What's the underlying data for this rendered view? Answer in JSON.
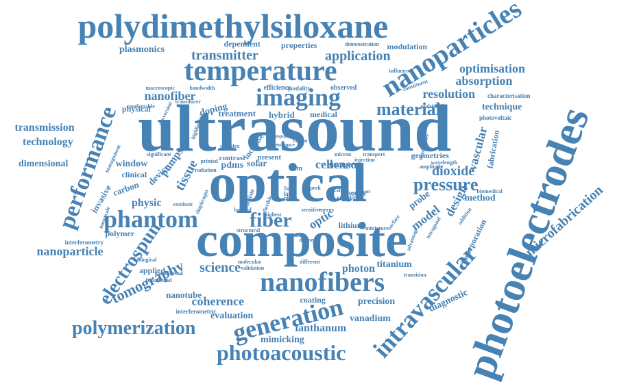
{
  "accent_color": "#4682b4",
  "words": [
    {
      "text": "ultrasound",
      "c": "#4682b4"
    },
    {
      "text": "optical",
      "c": "#4682b4"
    },
    {
      "text": "composite",
      "c": "#4682b4"
    },
    {
      "text": "photoelectrodes",
      "c": "#4682b4"
    },
    {
      "text": "polydimethylsiloxane",
      "c": "#4682b4"
    },
    {
      "text": "temperature",
      "c": "#4682b4"
    },
    {
      "text": "imaging",
      "c": "#4682b4"
    },
    {
      "text": "nanoparticles",
      "c": "#4682b4"
    },
    {
      "text": "nanofibers",
      "c": "#4682b4"
    },
    {
      "text": "intravascular",
      "c": "#4682b4"
    },
    {
      "text": "performance",
      "c": "#4682b4"
    },
    {
      "text": "phantom",
      "c": "#4682b4"
    },
    {
      "text": "generation",
      "c": "#4682b4"
    },
    {
      "text": "polymerization",
      "c": "#4682b4"
    },
    {
      "text": "photoacoustic",
      "c": "#4682b4"
    },
    {
      "text": "electrospun",
      "c": "#4682b4"
    },
    {
      "text": "pressure",
      "c": "#4682b4"
    },
    {
      "text": "material",
      "c": "#4682b4"
    },
    {
      "text": "fiber",
      "c": "#4682b4"
    },
    {
      "text": "tomography",
      "c": "#4682b4"
    },
    {
      "text": "microfabrication",
      "c": "#4682b4"
    },
    {
      "text": "transmitter",
      "c": "#4682b4"
    },
    {
      "text": "application",
      "c": "#4682b4"
    },
    {
      "text": "optimisation",
      "c": "#4682b4"
    },
    {
      "text": "nanofiber",
      "c": "#4682b4"
    },
    {
      "text": "resolution",
      "c": "#4682b4"
    },
    {
      "text": "absorption",
      "c": "#4682b4"
    },
    {
      "text": "coherence",
      "c": "#4682b4"
    },
    {
      "text": "science",
      "c": "#4682b4"
    },
    {
      "text": "dioxide",
      "c": "#4682b4"
    },
    {
      "text": "sensor",
      "c": "#4682b4"
    },
    {
      "text": "tissue",
      "c": "#4682b4"
    },
    {
      "text": "vascular",
      "c": "#4682b4"
    },
    {
      "text": "transmission",
      "c": "#4682b4"
    },
    {
      "text": "technology",
      "c": "#4682b4"
    },
    {
      "text": "nanoparticle",
      "c": "#4682b4"
    },
    {
      "text": "technique",
      "c": "#4682b4"
    },
    {
      "text": "plasmonics",
      "c": "#4682b4"
    },
    {
      "text": "dimensional",
      "c": "#4682b4"
    },
    {
      "text": "physic",
      "c": "#4682b4"
    },
    {
      "text": "model",
      "c": "#4682b4"
    },
    {
      "text": "design",
      "c": "#4682b4"
    },
    {
      "text": "optic",
      "c": "#4682b4"
    },
    {
      "text": "lanthanum",
      "c": "#4682b4"
    },
    {
      "text": "vanadium",
      "c": "#4682b4"
    },
    {
      "text": "mimicking",
      "c": "#4682b4"
    },
    {
      "text": "precision",
      "c": "#4682b4"
    },
    {
      "text": "photon",
      "c": "#4682b4"
    },
    {
      "text": "titanium",
      "c": "#4682b4"
    },
    {
      "text": "evaluation",
      "c": "#4682b4"
    },
    {
      "text": "nanotube",
      "c": "#4682b4"
    },
    {
      "text": "diagnostic",
      "c": "#4682b4"
    },
    {
      "text": "window",
      "c": "#4682b4"
    },
    {
      "text": "device",
      "c": "#4682b4"
    },
    {
      "text": "pumps",
      "c": "#4682b4"
    },
    {
      "text": "method",
      "c": "#4682b4"
    },
    {
      "text": "probe",
      "c": "#4682b4"
    },
    {
      "text": "cell",
      "c": "#4682b4"
    },
    {
      "text": "doping",
      "c": "#4682b4"
    },
    {
      "text": "solar",
      "c": "#4682b4"
    },
    {
      "text": "pdms",
      "c": "#4682b4"
    },
    {
      "text": "treatment",
      "c": "#4682b4"
    },
    {
      "text": "hybrid",
      "c": "#4682b4"
    },
    {
      "text": "medical",
      "c": "#4682b4"
    },
    {
      "text": "modulation",
      "c": "#4682b4"
    },
    {
      "text": "properties",
      "c": "#4682b4"
    },
    {
      "text": "dependent",
      "c": "#4682b4"
    },
    {
      "text": "physical",
      "c": "#4682b4"
    },
    {
      "text": "clinical",
      "c": "#4682b4"
    },
    {
      "text": "carbon",
      "c": "#4682b4"
    },
    {
      "text": "invasive",
      "c": "#4682b4"
    },
    {
      "text": "polymer",
      "c": "#4682b4"
    },
    {
      "text": "applied",
      "c": "#4682b4"
    },
    {
      "text": "coating",
      "c": "#4682b4"
    },
    {
      "text": "range",
      "c": "#4682b4"
    },
    {
      "text": "scale",
      "c": "#4682b4"
    },
    {
      "text": "lithium",
      "c": "#4682b4"
    },
    {
      "text": "incorporation",
      "c": "#4682b4"
    },
    {
      "text": "fabrication",
      "c": "#4682b4"
    },
    {
      "text": "geometries",
      "c": "#4682b4"
    },
    {
      "text": "increase",
      "c": "#4682b4"
    },
    {
      "text": "contrast",
      "c": "#4682b4"
    },
    {
      "text": "present",
      "c": "#4682b4"
    },
    {
      "text": "film",
      "c": "#4682b4"
    },
    {
      "text": "observed",
      "c": "#4682b4"
    },
    {
      "text": "efficiency",
      "c": "#4682b4"
    },
    {
      "text": "modality",
      "c": "#4682b4"
    },
    {
      "text": "characterisation",
      "c": "#4682b4"
    },
    {
      "text": "photovoltaic",
      "c": "#4682b4"
    },
    {
      "text": "interferometry",
      "c": "#4682b4"
    },
    {
      "text": "interferometric",
      "c": "#4682b4"
    },
    {
      "text": "broadband",
      "c": "#4682b4"
    },
    {
      "text": "comfortable",
      "c": "#4682b4"
    },
    {
      "text": "macroscopic",
      "c": "#4682b4"
    },
    {
      "text": "bandwidth",
      "c": "#4682b4"
    },
    {
      "text": "biological",
      "c": "#4682b4"
    },
    {
      "text": "different",
      "c": "#4682b4"
    },
    {
      "text": "transition",
      "c": "#4682b4"
    },
    {
      "text": "molecular",
      "c": "#4682b4"
    },
    {
      "text": "validation",
      "c": "#4682b4"
    },
    {
      "text": "surgery",
      "c": "#4682b4"
    },
    {
      "text": "sensing",
      "c": "#4682b4"
    },
    {
      "text": "sensitive",
      "c": "#4682b4"
    },
    {
      "text": "energy",
      "c": "#4682b4"
    },
    {
      "text": "micron",
      "c": "#4682b4"
    },
    {
      "text": "transport",
      "c": "#4682b4"
    },
    {
      "text": "laser",
      "c": "#4682b4"
    },
    {
      "text": "phase",
      "c": "#4682b4"
    },
    {
      "text": "form",
      "c": "#4682b4"
    },
    {
      "text": "wavelength",
      "c": "#4682b4"
    },
    {
      "text": "amplitude",
      "c": "#4682b4"
    },
    {
      "text": "sensitivities",
      "c": "#4682b4"
    },
    {
      "text": "biomedical",
      "c": "#4682b4"
    },
    {
      "text": "surface",
      "c": "#4682b4"
    },
    {
      "text": "addition",
      "c": "#4682b4"
    },
    {
      "text": "advantage",
      "c": "#4682b4"
    },
    {
      "text": "tetragonal",
      "c": "#4682b4"
    },
    {
      "text": "printed",
      "c": "#4682b4"
    },
    {
      "text": "complex",
      "c": "#4682b4"
    },
    {
      "text": "significant",
      "c": "#4682b4"
    },
    {
      "text": "management",
      "c": "#4682b4"
    },
    {
      "text": "mesoscale",
      "c": "#4682b4"
    },
    {
      "text": "highlighted",
      "c": "#4682b4"
    },
    {
      "text": "conversion",
      "c": "#4682b4"
    },
    {
      "text": "transducer",
      "c": "#4682b4"
    },
    {
      "text": "radiation",
      "c": "#4682b4"
    },
    {
      "text": "structural",
      "c": "#4682b4"
    },
    {
      "text": "simulate",
      "c": "#4682b4"
    },
    {
      "text": "multimode",
      "c": "#4682b4"
    },
    {
      "text": "influence",
      "c": "#4682b4"
    },
    {
      "text": "constituent",
      "c": "#4682b4"
    },
    {
      "text": "demonstration",
      "c": "#4682b4"
    },
    {
      "text": "diaphragm",
      "c": "#4682b4"
    },
    {
      "text": "extrinsic",
      "c": "#4682b4"
    },
    {
      "text": "nanofibrous",
      "c": "#4682b4"
    },
    {
      "text": "miniature",
      "c": "#4682b4"
    },
    {
      "text": "injection",
      "c": "#4682b4"
    },
    {
      "text": "peek",
      "c": "#4682b4"
    },
    {
      "text": "flexible",
      "c": "#4682b4"
    },
    {
      "text": "critical",
      "c": "#4682b4"
    },
    {
      "text": "highest",
      "c": "#4682b4"
    },
    {
      "text": "enhance",
      "c": "#4682b4"
    },
    {
      "text": "fabric",
      "c": "#4682b4"
    },
    {
      "text": "cation",
      "c": "#4682b4"
    },
    {
      "text": "variation",
      "c": "#4682b4"
    },
    {
      "text": "diameter",
      "c": "#4682b4"
    },
    {
      "text": "bonded",
      "c": "#4682b4"
    },
    {
      "text": "response",
      "c": "#4682b4"
    }
  ]
}
